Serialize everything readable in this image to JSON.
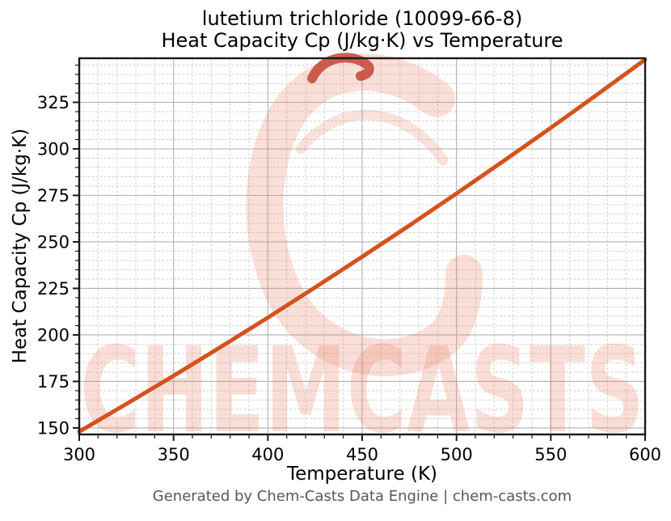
{
  "title": {
    "line1": "lutetium trichloride (10099-66-8)",
    "line2": "Heat Capacity Cp (J/kg·K) vs Temperature"
  },
  "footer": "Generated by Chem-Casts Data Engine | chem-casts.com",
  "watermark": {
    "text": "CHEMCASTS",
    "logo": "chemcasts-c-swirl-logo",
    "color": "#E97B5F",
    "accent_color": "#C0392B"
  },
  "colors": {
    "line": "#D4521C",
    "major_grid": "#b0b0b0",
    "minor_grid": "#cfcfcf",
    "spine": "#1a1a1a",
    "tick_text": "#000000",
    "footer_text": "#575757"
  },
  "chart_data": {
    "type": "line",
    "title": "lutetium trichloride (10099-66-8) Heat Capacity Cp (J/kg·K) vs Temperature",
    "xlabel": "Temperature (K)",
    "ylabel": "Heat Capacity Cp (J/kg·K)",
    "xlim": [
      300,
      600
    ],
    "ylim": [
      146.5,
      348.7
    ],
    "x_major_ticks": [
      300,
      350,
      400,
      450,
      500,
      550,
      600
    ],
    "y_major_ticks": [
      150,
      175,
      200,
      225,
      250,
      275,
      300,
      325
    ],
    "x_minor_step": 10,
    "y_minor_step": 5,
    "grid": {
      "major": "solid",
      "minor": "dashed"
    },
    "legend": "none",
    "series": [
      {
        "name": "Heat Capacity Cp",
        "color": "#D4521C",
        "x": [
          300,
          325,
          350,
          375,
          400,
          425,
          450,
          475,
          500,
          525,
          550,
          575,
          600
        ],
        "y": [
          148.0,
          162.9,
          178.0,
          193.5,
          209.3,
          225.5,
          242.0,
          258.8,
          276.0,
          293.5,
          311.3,
          329.5,
          348.0
        ]
      }
    ]
  }
}
